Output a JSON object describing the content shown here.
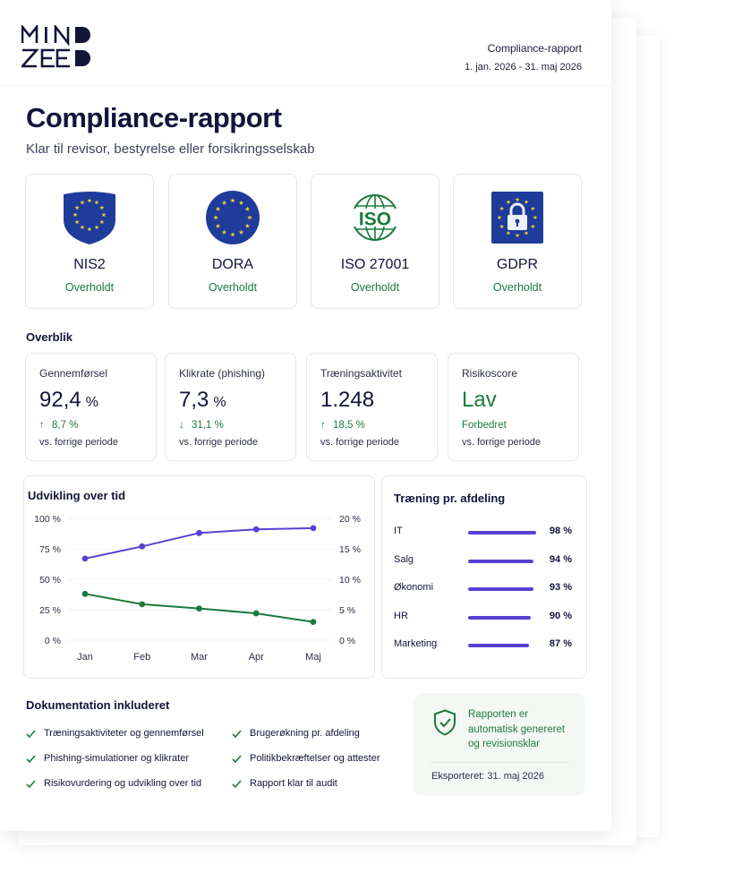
{
  "brand": {
    "logo_text": "MINDZEED"
  },
  "header": {
    "report_title": "Compliance-rapport",
    "period": "1. jan. 2026 - 31. maj 2026"
  },
  "page": {
    "title": "Compliance-rapport",
    "subtitle": "Klar til revisor, bestyrelse eller forsikringsselskab"
  },
  "frameworks": [
    {
      "name": "NIS2",
      "status": "Overholdt",
      "icon": "eu-shield-icon"
    },
    {
      "name": "DORA",
      "status": "Overholdt",
      "icon": "eu-stars-icon"
    },
    {
      "name": "ISO 27001",
      "status": "Overholdt",
      "icon": "iso-globe-icon"
    },
    {
      "name": "GDPR",
      "status": "Overholdt",
      "icon": "eu-lock-icon"
    }
  ],
  "overview": {
    "heading": "Overblik",
    "kpis": [
      {
        "label": "Gennemførsel",
        "value": "92,4",
        "unit": "%",
        "delta": "8,7 %",
        "direction": "up",
        "note": "vs. forrige periode"
      },
      {
        "label": "Klikrate (phishing)",
        "value": "7,3",
        "unit": "%",
        "delta": "31,1 %",
        "direction": "down",
        "note": "vs. forrige periode"
      },
      {
        "label": "Træningsaktivitet",
        "value": "1.248",
        "unit": "",
        "delta": "18,5 %",
        "direction": "up",
        "note": "vs. forrige periode"
      },
      {
        "label": "Risikoscore",
        "value": "Lav",
        "unit": "",
        "delta": "Forbedret",
        "direction": "none",
        "note": "vs. forrige periode"
      }
    ]
  },
  "chart_data": {
    "type": "line",
    "title": "Udvikling over tid",
    "categories": [
      "Jan",
      "Feb",
      "Mar",
      "Apr",
      "Maj"
    ],
    "y_left": {
      "ticks": [
        "100 %",
        "75 %",
        "50 %",
        "25 %",
        "0 %"
      ],
      "range": [
        0,
        100
      ]
    },
    "y_right": {
      "ticks": [
        "20 %",
        "15 %",
        "10 %",
        "5 %",
        "0 %"
      ],
      "range": [
        0,
        20
      ]
    },
    "series": [
      {
        "values": [
          67,
          77,
          88,
          91,
          92
        ],
        "axis": "left",
        "color": "#5b3fd3"
      },
      {
        "values": [
          7.6,
          5.9,
          5.2,
          4.4,
          3.0
        ],
        "axis": "right",
        "color": "#1b7a3c"
      }
    ],
    "grid": true
  },
  "departments": {
    "heading": "Træning pr. afdeling",
    "rows": [
      {
        "name": "IT",
        "value": "98 %",
        "fraction": 0.98
      },
      {
        "name": "Salg",
        "value": "94 %",
        "fraction": 0.94
      },
      {
        "name": "Økonomi",
        "value": "93 %",
        "fraction": 0.93
      },
      {
        "name": "HR",
        "value": "90 %",
        "fraction": 0.9
      },
      {
        "name": "Marketing",
        "value": "87 %",
        "fraction": 0.87
      }
    ],
    "bar_color": "#5b3fd3"
  },
  "documentation": {
    "heading": "Dokumentation inkluderet",
    "items": [
      "Træningsaktiviteter og gennemførsel",
      "Phishing-simulationer og klikrater",
      "Risikovurdering og udvikling over tid",
      "Brugerøkning pr. afdeling",
      "Politikbekræftelser og attester",
      "Rapport klar til audit"
    ]
  },
  "badge": {
    "text": "Rapporten er automatisk genereret og revisionsklar",
    "exported": "Eksporteret: 31. maj 2026",
    "icon": "shield-check-icon"
  },
  "colors": {
    "accent": "#5b3fd3",
    "success": "#1b7a3c",
    "eu_blue": "#1f3c9b",
    "eu_gold": "#f3d431",
    "navy": "#12143a"
  }
}
